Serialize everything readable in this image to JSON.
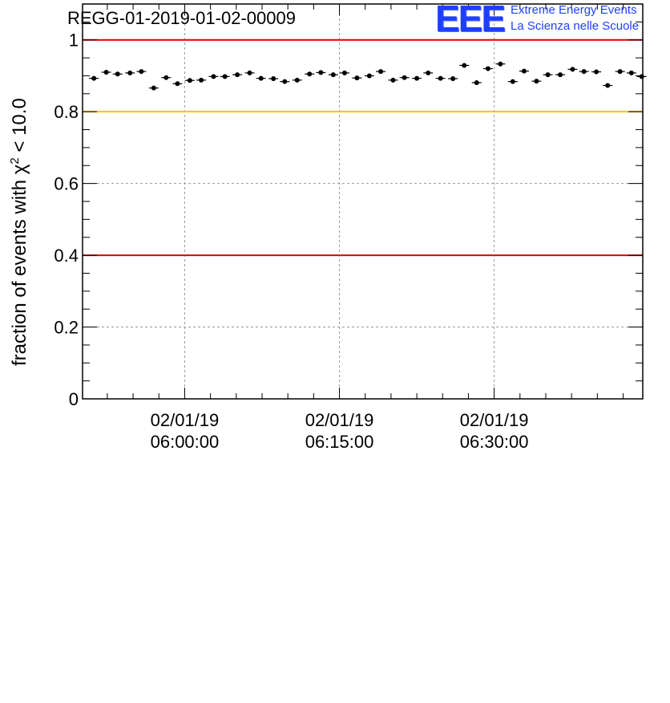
{
  "title": "REGG-01-2019-01-02-00009",
  "logo": {
    "mark": "EEE",
    "line1": "Extreme Energy Events",
    "line2": "La Scienza nelle Scuole",
    "color": "#1f3fff"
  },
  "chart_data": {
    "type": "scatter",
    "title": "REGG-01-2019-01-02-00009",
    "xlabel": "",
    "ylabel_prefix": "fraction of events with χ",
    "ylabel_sup": "2",
    "ylabel_suffix": " < 10.0",
    "ylim": [
      0,
      1.1
    ],
    "xlim_minutes": [
      -9.9,
      44.4
    ],
    "y_ticks": [
      0,
      0.2,
      0.4,
      0.6,
      0.8,
      1
    ],
    "y_tick_labels": [
      "0",
      "0.2",
      "0.4",
      "0.6",
      "0.8",
      "1"
    ],
    "x_ticks_minutes": [
      0,
      15,
      30
    ],
    "x_tick_labels": [
      [
        "02/01/19",
        "06:00:00"
      ],
      [
        "02/01/19",
        "06:15:00"
      ],
      [
        "02/01/19",
        "06:30:00"
      ]
    ],
    "grid": true,
    "reference_lines": [
      {
        "y": 1.0,
        "color": "#e00000"
      },
      {
        "y": 0.8,
        "color": "#ffc000"
      },
      {
        "y": 0.4,
        "color": "#e00000"
      }
    ],
    "series": [
      {
        "name": "fraction",
        "x_minutes": [
          -8.8,
          -7.6,
          -6.5,
          -5.3,
          -4.2,
          -3.0,
          -1.8,
          -0.7,
          0.5,
          1.6,
          2.8,
          3.9,
          5.1,
          6.3,
          7.4,
          8.6,
          9.7,
          10.9,
          12.1,
          13.2,
          14.4,
          15.5,
          16.7,
          17.9,
          19.0,
          20.2,
          21.3,
          22.5,
          23.6,
          24.8,
          26.0,
          27.1,
          28.3,
          29.4,
          30.6,
          31.8,
          32.9,
          34.1,
          35.2,
          36.4,
          37.6,
          38.7,
          39.9,
          41.0,
          42.2,
          43.3,
          44.3
        ],
        "values": [
          0.893,
          0.91,
          0.905,
          0.908,
          0.912,
          0.866,
          0.895,
          0.878,
          0.887,
          0.888,
          0.898,
          0.898,
          0.903,
          0.908,
          0.893,
          0.892,
          0.884,
          0.888,
          0.905,
          0.909,
          0.903,
          0.908,
          0.894,
          0.9,
          0.912,
          0.888,
          0.895,
          0.893,
          0.908,
          0.893,
          0.892,
          0.929,
          0.881,
          0.92,
          0.933,
          0.884,
          0.913,
          0.885,
          0.903,
          0.903,
          0.918,
          0.912,
          0.911,
          0.873,
          0.912,
          0.908,
          0.898
        ],
        "error": 0.006,
        "color": "#000000"
      }
    ]
  }
}
